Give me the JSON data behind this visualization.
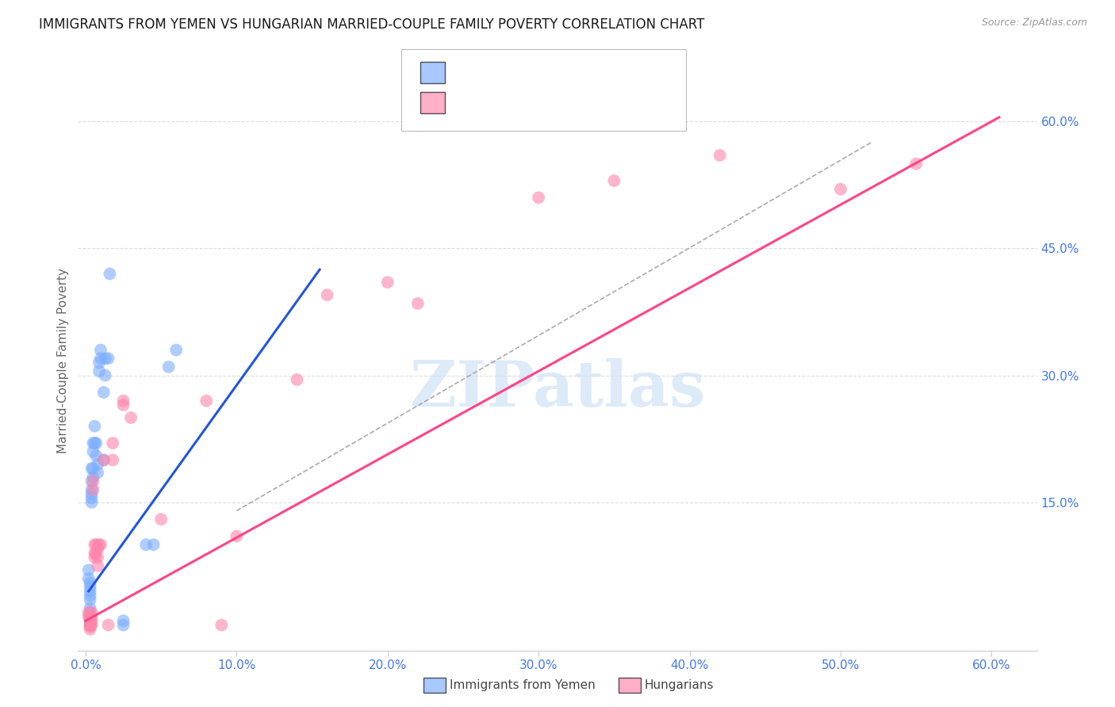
{
  "title": "IMMIGRANTS FROM YEMEN VS HUNGARIAN MARRIED-COUPLE FAMILY POVERTY CORRELATION CHART",
  "source": "Source: ZipAtlas.com",
  "ylabel": "Married-Couple Family Poverty",
  "x_tick_labels": [
    "0.0%",
    "10.0%",
    "20.0%",
    "30.0%",
    "40.0%",
    "50.0%",
    "60.0%"
  ],
  "x_tick_values": [
    0.0,
    0.1,
    0.2,
    0.3,
    0.4,
    0.5,
    0.6
  ],
  "y_tick_labels": [
    "15.0%",
    "30.0%",
    "45.0%",
    "60.0%"
  ],
  "y_tick_values": [
    0.15,
    0.3,
    0.45,
    0.6
  ],
  "xlim": [
    -0.005,
    0.63
  ],
  "ylim": [
    -0.025,
    0.66
  ],
  "legend_label1": "Immigrants from Yemen",
  "legend_label2": "Hungarians",
  "watermark": "ZIPatlas",
  "blue_color": "#7aadff",
  "pink_color": "#ff85aa",
  "line_blue_color": "#2255dd",
  "line_pink_color": "#ff4488",
  "blue_scatter": [
    [
      0.002,
      0.07
    ],
    [
      0.002,
      0.06
    ],
    [
      0.003,
      0.055
    ],
    [
      0.003,
      0.05
    ],
    [
      0.003,
      0.045
    ],
    [
      0.003,
      0.04
    ],
    [
      0.003,
      0.035
    ],
    [
      0.003,
      0.025
    ],
    [
      0.003,
      0.02
    ],
    [
      0.003,
      0.015
    ],
    [
      0.003,
      0.01
    ],
    [
      0.003,
      0.005
    ],
    [
      0.004,
      0.19
    ],
    [
      0.004,
      0.175
    ],
    [
      0.004,
      0.165
    ],
    [
      0.004,
      0.16
    ],
    [
      0.004,
      0.155
    ],
    [
      0.004,
      0.15
    ],
    [
      0.005,
      0.19
    ],
    [
      0.005,
      0.18
    ],
    [
      0.005,
      0.22
    ],
    [
      0.005,
      0.21
    ],
    [
      0.006,
      0.24
    ],
    [
      0.006,
      0.22
    ],
    [
      0.007,
      0.22
    ],
    [
      0.007,
      0.205
    ],
    [
      0.008,
      0.195
    ],
    [
      0.008,
      0.185
    ],
    [
      0.009,
      0.315
    ],
    [
      0.009,
      0.305
    ],
    [
      0.01,
      0.33
    ],
    [
      0.01,
      0.32
    ],
    [
      0.012,
      0.2
    ],
    [
      0.012,
      0.28
    ],
    [
      0.013,
      0.3
    ],
    [
      0.013,
      0.32
    ],
    [
      0.015,
      0.32
    ],
    [
      0.016,
      0.42
    ],
    [
      0.025,
      0.005
    ],
    [
      0.025,
      0.01
    ],
    [
      0.04,
      0.1
    ],
    [
      0.045,
      0.1
    ],
    [
      0.055,
      0.31
    ],
    [
      0.06,
      0.33
    ]
  ],
  "pink_scatter": [
    [
      0.002,
      0.02
    ],
    [
      0.002,
      0.015
    ],
    [
      0.003,
      0.015
    ],
    [
      0.003,
      0.01
    ],
    [
      0.003,
      0.007
    ],
    [
      0.003,
      0.005
    ],
    [
      0.003,
      0.003
    ],
    [
      0.003,
      0.0
    ],
    [
      0.004,
      0.02
    ],
    [
      0.004,
      0.015
    ],
    [
      0.004,
      0.01
    ],
    [
      0.004,
      0.005
    ],
    [
      0.005,
      0.175
    ],
    [
      0.005,
      0.165
    ],
    [
      0.006,
      0.1
    ],
    [
      0.006,
      0.09
    ],
    [
      0.006,
      0.085
    ],
    [
      0.007,
      0.1
    ],
    [
      0.007,
      0.09
    ],
    [
      0.008,
      0.095
    ],
    [
      0.008,
      0.085
    ],
    [
      0.008,
      0.075
    ],
    [
      0.009,
      0.1
    ],
    [
      0.01,
      0.1
    ],
    [
      0.012,
      0.2
    ],
    [
      0.015,
      0.005
    ],
    [
      0.018,
      0.22
    ],
    [
      0.018,
      0.2
    ],
    [
      0.025,
      0.27
    ],
    [
      0.025,
      0.265
    ],
    [
      0.03,
      0.25
    ],
    [
      0.05,
      0.13
    ],
    [
      0.08,
      0.27
    ],
    [
      0.09,
      0.005
    ],
    [
      0.1,
      0.11
    ],
    [
      0.14,
      0.295
    ],
    [
      0.16,
      0.395
    ],
    [
      0.2,
      0.41
    ],
    [
      0.22,
      0.385
    ],
    [
      0.3,
      0.51
    ],
    [
      0.35,
      0.53
    ],
    [
      0.42,
      0.56
    ],
    [
      0.5,
      0.52
    ],
    [
      0.55,
      0.55
    ]
  ],
  "blue_line_x": [
    0.002,
    0.155
  ],
  "blue_line_y": [
    0.045,
    0.425
  ],
  "pink_line_x": [
    0.0,
    0.605
  ],
  "pink_line_y": [
    0.01,
    0.605
  ],
  "dashed_line_x": [
    0.1,
    0.52
  ],
  "dashed_line_y": [
    0.14,
    0.575
  ],
  "background_color": "#ffffff",
  "grid_color": "#dddddd",
  "title_color": "#1a1a1a",
  "tick_label_color": "#4477ee"
}
